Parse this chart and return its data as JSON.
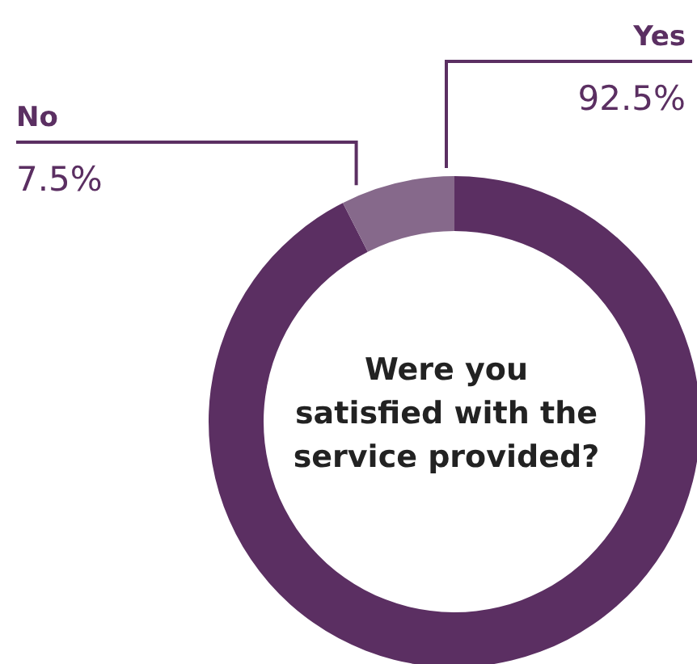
{
  "chart_data": {
    "type": "donut",
    "title": "Were you satisfied with the service provided?",
    "categories": [
      "Yes",
      "No"
    ],
    "values": [
      92.5,
      7.5
    ],
    "colors": [
      "#5b2f62",
      "#86698b"
    ],
    "value_labels": [
      "92.5%",
      "7.5%"
    ]
  }
}
